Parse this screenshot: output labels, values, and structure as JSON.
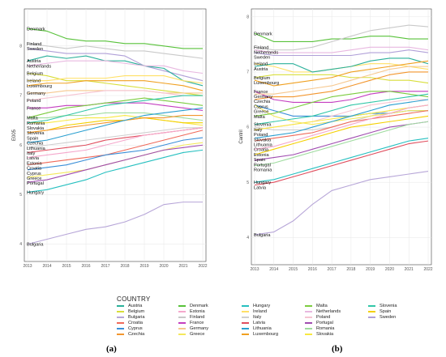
{
  "panels": [
    {
      "caption": "(a)",
      "ylabel": "E005",
      "ylim": [
        3.7,
        8.7
      ],
      "yticks": [
        "4",
        "5",
        "6",
        "7",
        "8"
      ]
    },
    {
      "caption": "(b)",
      "ylabel": "Cantril",
      "ylim": [
        3.55,
        8.1
      ],
      "yticks": [
        "4",
        "5",
        "6",
        "7",
        "8"
      ]
    }
  ],
  "legend": {
    "title": "COUNTRY",
    "items": [
      "Austria",
      "Belgium",
      "Bulgaria",
      "Croatia",
      "Cyprus",
      "Czechia",
      "Denmark",
      "Estonia",
      "Finland",
      "France",
      "Germany",
      "Greece",
      "Hungary",
      "Ireland",
      "Italy",
      "Latvia",
      "Lithuania",
      "Luxembourg",
      "Malta",
      "Netherlands",
      "Poland",
      "Portugal",
      "Romania",
      "Slovakia",
      "Slovenia",
      "Spain",
      "Sweden"
    ]
  },
  "colors": {
    "Austria": "#2ab09a",
    "Belgium": "#d8de3a",
    "Bulgaria": "#b7a6d8",
    "Croatia": "#f06a5a",
    "Cyprus": "#3a8fd8",
    "Czechia": "#f2962e",
    "Denmark": "#58c23a",
    "Estonia": "#f5a8cc",
    "Finland": "#c9c9c9",
    "France": "#c43ec0",
    "Germany": "#f6c88f",
    "Greece": "#f4e85c",
    "Hungary": "#27c0c0",
    "Ireland": "#ffe066",
    "Italy": "#cfcfcf",
    "Latvia": "#e04e5e",
    "Lithuania": "#2a9fd0",
    "Luxembourg": "#f0a020",
    "Malta": "#7ccc40",
    "Netherlands": "#e8b8e0",
    "Poland": "#f6c4d2",
    "Portugal": "#a04cb0",
    "Romania": "#a0dca0",
    "Slovakia": "#f8e840",
    "Slovenia": "#31c7a8",
    "Spain": "#f4d000",
    "Sweden": "#b0a0d8"
  },
  "chart_data": [
    {
      "type": "line",
      "title": "",
      "xlabel": "",
      "ylabel": "E005",
      "x": [
        2013,
        2014,
        2015,
        2016,
        2017,
        2018,
        2019,
        2020,
        2021,
        2022
      ],
      "ylim": [
        3.7,
        8.7
      ],
      "grid": true,
      "series": [
        {
          "name": "Denmark",
          "values": [
            8.35,
            8.3,
            8.15,
            8.1,
            8.1,
            8.05,
            8.05,
            8.0,
            7.95,
            7.95
          ]
        },
        {
          "name": "Finland",
          "values": [
            8.05,
            8.0,
            7.95,
            8.0,
            7.95,
            7.9,
            7.9,
            7.85,
            7.8,
            7.75
          ]
        },
        {
          "name": "Sweden",
          "values": [
            7.95,
            7.9,
            7.85,
            7.85,
            7.85,
            7.8,
            7.6,
            7.5,
            7.4,
            7.3
          ]
        },
        {
          "name": "Austria",
          "values": [
            7.7,
            7.8,
            7.75,
            7.8,
            7.7,
            7.7,
            7.6,
            7.55,
            7.3,
            7.2
          ]
        },
        {
          "name": "Netherlands",
          "values": [
            7.6,
            7.65,
            7.7,
            7.7,
            7.7,
            7.65,
            7.6,
            7.6,
            7.5,
            7.45
          ]
        },
        {
          "name": "Belgium",
          "values": [
            7.45,
            7.4,
            7.3,
            7.3,
            7.25,
            7.2,
            7.15,
            7.1,
            7.05,
            7.0
          ]
        },
        {
          "name": "Ireland",
          "values": [
            7.3,
            7.3,
            7.35,
            7.35,
            7.35,
            7.4,
            7.4,
            7.4,
            7.3,
            7.25
          ]
        },
        {
          "name": "Luxembourg",
          "values": [
            7.2,
            7.25,
            7.25,
            7.3,
            7.3,
            7.3,
            7.3,
            7.25,
            7.2,
            7.1
          ]
        },
        {
          "name": "Germany",
          "values": [
            7.05,
            7.05,
            7.1,
            7.1,
            7.1,
            7.1,
            7.1,
            7.05,
            7.05,
            7.05
          ]
        },
        {
          "name": "Poland",
          "values": [
            6.9,
            6.95,
            7.0,
            7.05,
            7.1,
            7.1,
            7.1,
            7.05,
            7.0,
            7.0
          ]
        },
        {
          "name": "France",
          "values": [
            6.75,
            6.75,
            6.8,
            6.8,
            6.85,
            6.85,
            6.85,
            6.8,
            6.75,
            6.7
          ]
        },
        {
          "name": "Malta",
          "values": [
            6.55,
            6.65,
            6.75,
            6.8,
            6.85,
            6.9,
            6.95,
            6.9,
            6.85,
            6.8
          ]
        },
        {
          "name": "Romania",
          "values": [
            6.55,
            6.55,
            6.6,
            6.6,
            6.65,
            6.65,
            6.65,
            6.6,
            6.55,
            6.5
          ]
        },
        {
          "name": "Slovakia",
          "values": [
            6.45,
            6.45,
            6.5,
            6.55,
            6.55,
            6.6,
            6.55,
            6.5,
            6.45,
            6.4
          ]
        },
        {
          "name": "Slovenia",
          "values": [
            6.45,
            6.5,
            6.6,
            6.7,
            6.8,
            6.85,
            6.9,
            6.95,
            7.0,
            7.0
          ]
        },
        {
          "name": "Spain",
          "values": [
            6.25,
            6.3,
            6.4,
            6.45,
            6.5,
            6.5,
            6.55,
            6.5,
            6.45,
            6.45
          ]
        },
        {
          "name": "Czechia",
          "values": [
            6.25,
            6.3,
            6.35,
            6.4,
            6.45,
            6.5,
            6.55,
            6.55,
            6.6,
            6.6
          ]
        },
        {
          "name": "Italy",
          "values": [
            5.95,
            6.0,
            6.05,
            6.1,
            6.15,
            6.2,
            6.25,
            6.3,
            6.35,
            6.35
          ]
        },
        {
          "name": "Lithuania",
          "values": [
            6.05,
            6.1,
            6.2,
            6.3,
            6.4,
            6.5,
            6.6,
            6.65,
            6.7,
            6.75
          ]
        },
        {
          "name": "Latvia",
          "values": [
            5.85,
            5.9,
            5.95,
            6.0,
            6.1,
            6.15,
            6.2,
            6.25,
            6.3,
            6.35
          ]
        },
        {
          "name": "Estonia",
          "values": [
            5.75,
            5.8,
            5.85,
            5.9,
            6.0,
            6.1,
            6.2,
            6.25,
            6.3,
            6.35
          ]
        },
        {
          "name": "Croatia",
          "values": [
            5.6,
            5.65,
            5.7,
            5.75,
            5.8,
            5.9,
            6.0,
            6.1,
            6.2,
            6.3
          ]
        },
        {
          "name": "Greece",
          "values": [
            5.35,
            5.4,
            5.45,
            5.5,
            5.6,
            5.7,
            5.8,
            5.9,
            6.0,
            6.05
          ]
        },
        {
          "name": "Cyprus",
          "values": [
            5.5,
            5.55,
            5.6,
            5.7,
            5.8,
            5.85,
            5.9,
            6.0,
            6.1,
            6.15
          ]
        },
        {
          "name": "Portugal",
          "values": [
            5.25,
            5.3,
            5.4,
            5.5,
            5.6,
            5.7,
            5.8,
            5.9,
            5.95,
            6.0
          ]
        },
        {
          "name": "Hungary",
          "values": [
            5.05,
            5.1,
            5.2,
            5.3,
            5.45,
            5.55,
            5.65,
            5.75,
            5.85,
            5.9
          ]
        },
        {
          "name": "Bulgaria",
          "values": [
            4.0,
            4.1,
            4.2,
            4.3,
            4.35,
            4.45,
            4.6,
            4.8,
            4.85,
            4.85
          ]
        }
      ]
    },
    {
      "type": "line",
      "title": "",
      "xlabel": "",
      "ylabel": "Cantril",
      "x": [
        2013,
        2014,
        2015,
        2016,
        2017,
        2018,
        2019,
        2020,
        2021,
        2022
      ],
      "ylim": [
        3.55,
        8.1
      ],
      "grid": true,
      "series": [
        {
          "name": "Denmark",
          "values": [
            7.7,
            7.55,
            7.55,
            7.55,
            7.6,
            7.6,
            7.65,
            7.65,
            7.6,
            7.6
          ]
        },
        {
          "name": "Finland",
          "values": [
            7.45,
            7.4,
            7.4,
            7.45,
            7.55,
            7.65,
            7.75,
            7.8,
            7.85,
            7.82
          ]
        },
        {
          "name": "Sweden",
          "values": [
            7.35,
            7.3,
            7.3,
            7.3,
            7.3,
            7.3,
            7.35,
            7.35,
            7.4,
            7.35
          ]
        },
        {
          "name": "Netherlands",
          "values": [
            7.4,
            7.35,
            7.35,
            7.35,
            7.35,
            7.4,
            7.45,
            7.45,
            7.45,
            7.4
          ]
        },
        {
          "name": "Ireland",
          "values": [
            7.15,
            7.1,
            7.0,
            7.0,
            7.05,
            7.1,
            7.15,
            7.15,
            7.1,
            7.05
          ]
        },
        {
          "name": "Austria",
          "values": [
            7.1,
            7.15,
            7.15,
            7.0,
            7.05,
            7.1,
            7.2,
            7.25,
            7.25,
            7.15
          ]
        },
        {
          "name": "Belgium",
          "values": [
            6.9,
            6.95,
            6.95,
            6.95,
            6.95,
            6.9,
            6.9,
            6.85,
            6.85,
            6.8
          ]
        },
        {
          "name": "Luxembourg",
          "values": [
            6.85,
            6.75,
            6.8,
            6.85,
            6.9,
            7.0,
            7.05,
            7.1,
            7.15,
            7.2
          ]
        },
        {
          "name": "Italy",
          "values": [
            6.0,
            5.95,
            5.95,
            5.95,
            6.0,
            6.1,
            6.2,
            6.3,
            6.35,
            6.4
          ]
        },
        {
          "name": "France",
          "values": [
            6.65,
            6.5,
            6.45,
            6.45,
            6.45,
            6.5,
            6.6,
            6.65,
            6.65,
            6.65
          ]
        },
        {
          "name": "Cyprus",
          "values": [
            6.4,
            6.3,
            6.2,
            6.2,
            6.2,
            6.2,
            6.25,
            6.25,
            6.3,
            6.3
          ]
        },
        {
          "name": "Germany",
          "values": [
            6.6,
            6.6,
            6.65,
            6.7,
            6.75,
            6.85,
            6.95,
            7.05,
            7.1,
            7.1
          ]
        },
        {
          "name": "Czechia",
          "values": [
            6.5,
            6.55,
            6.55,
            6.6,
            6.65,
            6.75,
            6.85,
            6.95,
            7.0,
            7.0
          ]
        },
        {
          "name": "Greece",
          "values": [
            6.4,
            6.2,
            6.1,
            6.05,
            6.1,
            6.15,
            6.2,
            6.25,
            6.3,
            6.3
          ]
        },
        {
          "name": "Malta",
          "values": [
            6.2,
            6.25,
            6.35,
            6.45,
            6.55,
            6.6,
            6.65,
            6.65,
            6.6,
            6.55
          ]
        },
        {
          "name": "Slovenia",
          "values": [
            6.05,
            6.1,
            6.15,
            6.2,
            6.3,
            6.4,
            6.45,
            6.5,
            6.55,
            6.6
          ]
        },
        {
          "name": "Poland",
          "values": [
            5.95,
            6.0,
            6.05,
            6.1,
            6.2,
            6.3,
            6.4,
            6.45,
            6.5,
            6.5
          ]
        },
        {
          "name": "Slovakia",
          "values": [
            5.95,
            6.0,
            6.05,
            6.1,
            6.15,
            6.2,
            6.25,
            6.3,
            6.35,
            6.4
          ]
        },
        {
          "name": "Croatia",
          "values": [
            5.75,
            5.8,
            5.85,
            5.9,
            6.0,
            6.1,
            6.15,
            6.2,
            6.25,
            6.3
          ]
        },
        {
          "name": "Lithuania",
          "values": [
            5.8,
            5.85,
            5.9,
            6.0,
            6.1,
            6.2,
            6.3,
            6.4,
            6.45,
            6.5
          ]
        },
        {
          "name": "Estonia",
          "values": [
            5.6,
            5.65,
            5.75,
            5.85,
            5.95,
            6.05,
            6.15,
            6.25,
            6.35,
            6.4
          ]
        },
        {
          "name": "Portugal",
          "values": [
            5.4,
            5.45,
            5.5,
            5.6,
            5.7,
            5.8,
            5.9,
            6.0,
            6.05,
            6.1
          ]
        },
        {
          "name": "Romania",
          "values": [
            5.3,
            5.35,
            5.45,
            5.55,
            5.65,
            5.75,
            5.85,
            5.95,
            6.05,
            6.1
          ]
        },
        {
          "name": "Hungary",
          "values": [
            5.0,
            5.05,
            5.15,
            5.25,
            5.35,
            5.45,
            5.55,
            5.65,
            5.75,
            5.8
          ]
        },
        {
          "name": "Latvia",
          "values": [
            4.95,
            5.0,
            5.1,
            5.2,
            5.3,
            5.4,
            5.5,
            5.6,
            5.7,
            5.75
          ]
        },
        {
          "name": "Spain",
          "values": [
            5.5,
            5.6,
            5.7,
            5.8,
            5.9,
            6.0,
            6.05,
            6.1,
            6.15,
            6.2
          ]
        },
        {
          "name": "Bulgaria",
          "values": [
            4.05,
            4.1,
            4.3,
            4.6,
            4.85,
            4.95,
            5.05,
            5.1,
            5.15,
            5.2
          ]
        }
      ]
    }
  ]
}
